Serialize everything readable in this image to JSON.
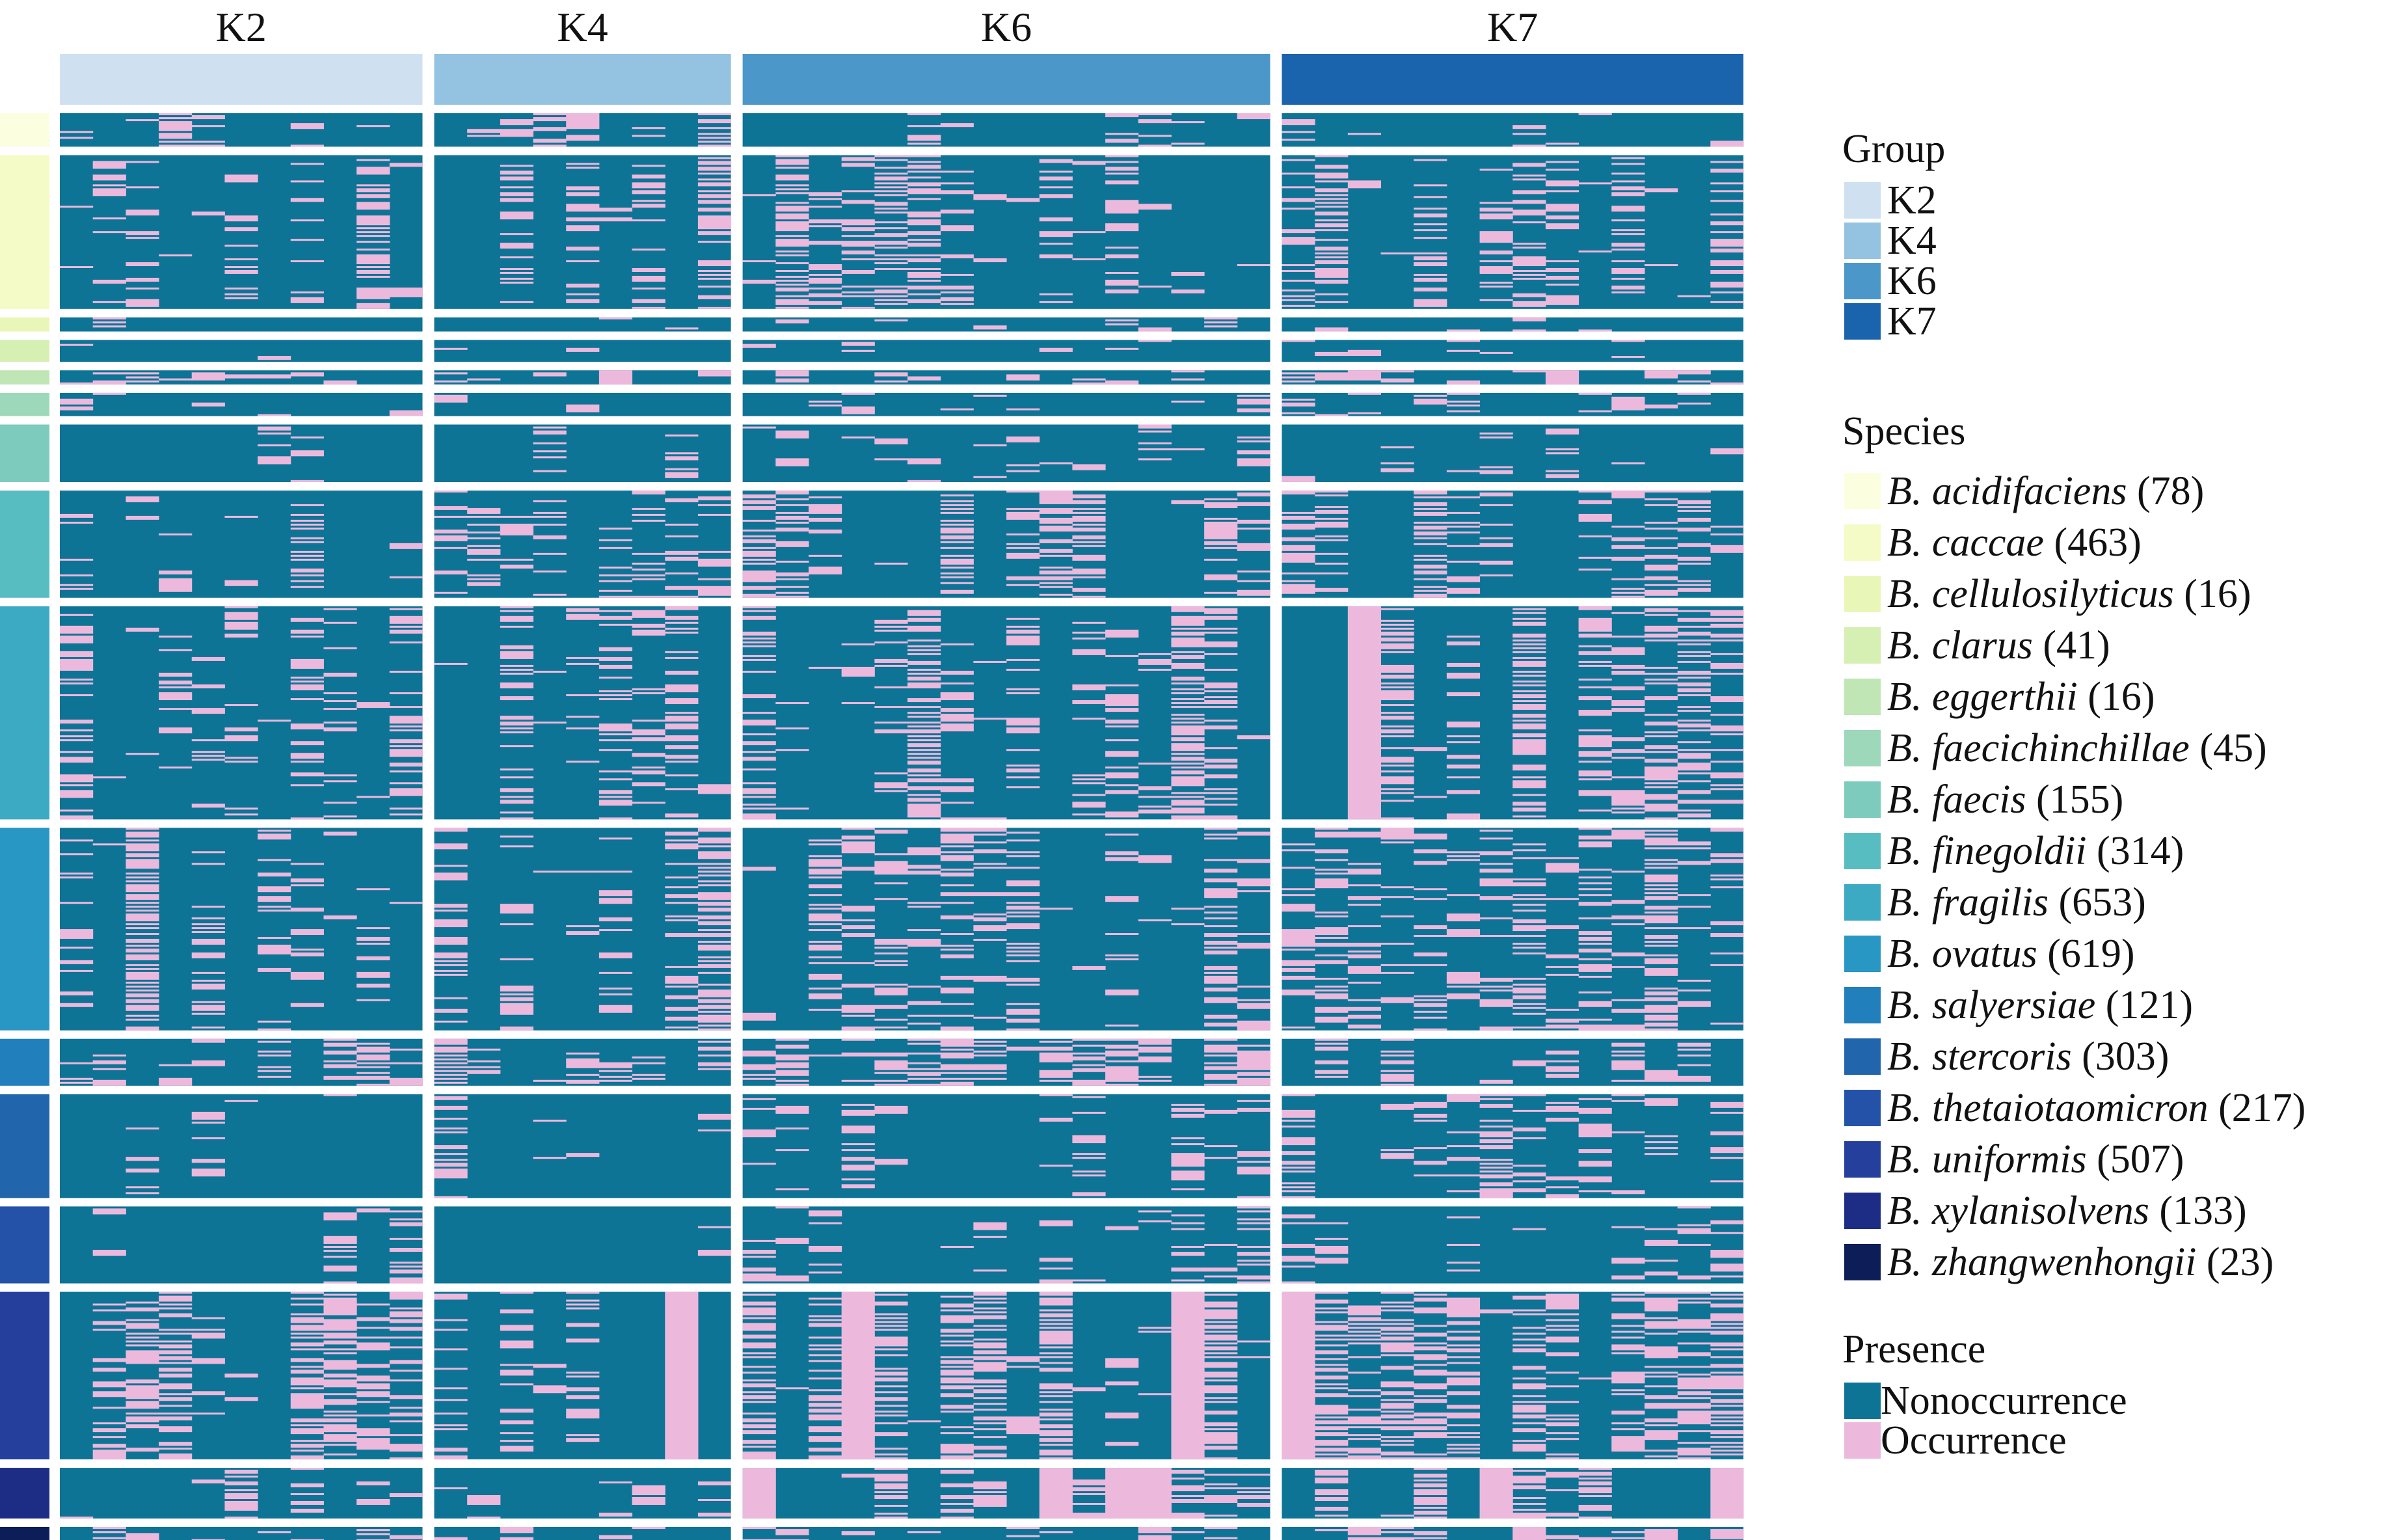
{
  "chart_data": {
    "type": "heatmap",
    "title": "",
    "column_groups": [
      {
        "label": "K2",
        "color": "#cfe0f0",
        "subcolumns": 11
      },
      {
        "label": "K4",
        "color": "#93c3e0",
        "subcolumns": 9
      },
      {
        "label": "K6",
        "color": "#4b97c9",
        "subcolumns": 16
      },
      {
        "label": "K7",
        "color": "#1a64ad",
        "subcolumns": 14
      }
    ],
    "row_groups": [
      {
        "species": "B. acidifaciens",
        "count": "(78)",
        "color": "#fcfee0",
        "size": 78
      },
      {
        "species": "B. caccae",
        "count": "(463)",
        "color": "#f5fbc6",
        "size": 463
      },
      {
        "species": "B. cellulosilyticus",
        "count": "(16)",
        "color": "#e8f6b8",
        "size": 16
      },
      {
        "species": "B. clarus",
        "count": "(41)",
        "color": "#d6efb3",
        "size": 41
      },
      {
        "species": "B. eggerthii",
        "count": "(16)",
        "color": "#bfe6b4",
        "size": 16
      },
      {
        "species": "B.  faecichinchillae",
        "count": "(45)",
        "color": "#9dd8bb",
        "size": 45
      },
      {
        "species": "B.  faecis",
        "count": "(155)",
        "color": "#7ccbbc",
        "size": 155
      },
      {
        "species": "B.  finegoldii",
        "count": "(314)",
        "color": "#58bdc0",
        "size": 314
      },
      {
        "species": "B.  fragilis",
        "count": "(653)",
        "color": "#3caac3",
        "size": 653
      },
      {
        "species": "B. ovatus",
        "count": "(619)",
        "color": "#2897c4",
        "size": 619
      },
      {
        "species": "B. salyersiae",
        "count": "(121)",
        "color": "#2180bb",
        "size": 121
      },
      {
        "species": "B. stercoris",
        "count": "(303)",
        "color": "#2166ad",
        "size": 303
      },
      {
        "species": "B. thetaiotaomicron",
        "count": "(217)",
        "color": "#2352a8",
        "size": 217
      },
      {
        "species": "B. uniformis",
        "count": "(507)",
        "color": "#253f9c",
        "size": 507
      },
      {
        "species": "B. xylanisolvens",
        "count": "(133)",
        "color": "#1d2d86",
        "size": 133
      },
      {
        "species": "B. zhangwenhongii",
        "count": "(23)",
        "color": "#0c1d57",
        "size": 23
      }
    ],
    "presence_colors": {
      "nonoccurrence": "#0e7496",
      "occurrence": "#ecb9dc"
    },
    "occurrence_density": [
      [
        0.15,
        0.05,
        0.04,
        0.02
      ],
      [
        0.16,
        0.18,
        0.2,
        0.22
      ],
      [
        0.05,
        0.04,
        0.06,
        0.06
      ],
      [
        0.03,
        0.02,
        0.05,
        0.05
      ],
      [
        0.08,
        0.04,
        0.15,
        0.17
      ],
      [
        0.02,
        0.02,
        0.06,
        0.06
      ],
      [
        0.02,
        0.01,
        0.05,
        0.05
      ],
      [
        0.04,
        0.12,
        0.22,
        0.1
      ],
      [
        0.1,
        0.12,
        0.12,
        0.18
      ],
      [
        0.14,
        0.12,
        0.12,
        0.14
      ],
      [
        0.18,
        0.14,
        0.32,
        0.28
      ],
      [
        0.03,
        0.02,
        0.06,
        0.1
      ],
      [
        0.03,
        0.01,
        0.07,
        0.08
      ],
      [
        0.1,
        0.16,
        0.4,
        0.32
      ],
      [
        0.08,
        0.08,
        0.28,
        0.3
      ],
      [
        0.1,
        0.1,
        0.12,
        0.16
      ]
    ]
  },
  "legend": {
    "group": {
      "title": "Group",
      "items": [
        {
          "label": "K2",
          "color": "#cfe0f0"
        },
        {
          "label": "K4",
          "color": "#93c3e0"
        },
        {
          "label": "K6",
          "color": "#4b97c9"
        },
        {
          "label": "K7",
          "color": "#1a64ad"
        }
      ]
    },
    "species_title": "Species",
    "presence": {
      "title": "Presence",
      "items": [
        {
          "label": "Nonoccurrence",
          "color": "#0e7496"
        },
        {
          "label": "Occurrence",
          "color": "#ecb9dc"
        }
      ]
    }
  }
}
